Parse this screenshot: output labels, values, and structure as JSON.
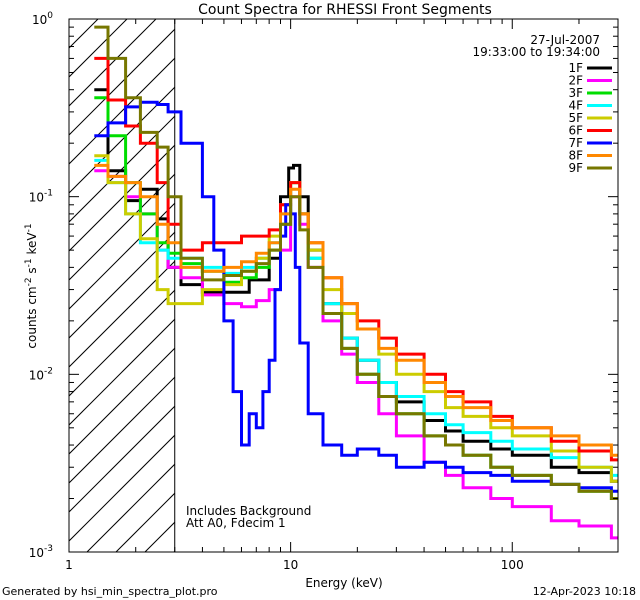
{
  "chart_data": {
    "type": "line",
    "title": "Count Spectra for RHESSI Front Segments",
    "xlabel": "Energy (keV)",
    "ylabel_parts": {
      "base": "counts cm",
      "exp1": "-2",
      "mid": " s",
      "exp2": "-1",
      "tail": " keV",
      "exp3": "-1"
    },
    "x_scale": "log",
    "y_scale": "log",
    "xlim": [
      1,
      300
    ],
    "ylim": [
      0.001,
      1
    ],
    "x_ticks": [
      {
        "value": 1,
        "label": "1"
      },
      {
        "value": 10,
        "label": "10"
      },
      {
        "value": 100,
        "label": "100"
      }
    ],
    "y_ticks": [
      {
        "value": 1,
        "base": "10",
        "exp": "0"
      },
      {
        "value": 0.1,
        "base": "10",
        "exp": "-1"
      },
      {
        "value": 0.01,
        "base": "10",
        "exp": "-2"
      },
      {
        "value": 0.001,
        "base": "10",
        "exp": "-3"
      }
    ],
    "date": "27-Jul-2007",
    "time_range": "19:33:00 to 19:34:00",
    "cutoff_energy": 3,
    "notes": [
      "Includes Background",
      "Att A0, Fdecim 1"
    ],
    "series": [
      {
        "name": "1F",
        "color": "#000000",
        "points": [
          [
            1.3,
            0.4
          ],
          [
            1.5,
            0.14
          ],
          [
            1.8,
            0.095
          ],
          [
            2.1,
            0.11
          ],
          [
            2.5,
            0.075
          ],
          [
            2.8,
            0.04
          ],
          [
            3.2,
            0.032
          ],
          [
            4,
            0.029
          ],
          [
            5,
            0.029
          ],
          [
            6.5,
            0.034
          ],
          [
            8,
            0.045
          ],
          [
            9,
            0.1
          ],
          [
            9.8,
            0.145
          ],
          [
            10.3,
            0.15
          ],
          [
            11,
            0.1
          ],
          [
            12,
            0.05
          ],
          [
            14,
            0.025
          ],
          [
            17,
            0.016
          ],
          [
            20,
            0.012
          ],
          [
            25,
            0.009
          ],
          [
            30,
            0.007
          ],
          [
            40,
            0.0055
          ],
          [
            50,
            0.0048
          ],
          [
            60,
            0.0042
          ],
          [
            80,
            0.0038
          ],
          [
            100,
            0.0035
          ],
          [
            150,
            0.003
          ],
          [
            200,
            0.0028
          ],
          [
            280,
            0.0025
          ]
        ]
      },
      {
        "name": "2F",
        "color": "#ff00ff",
        "points": [
          [
            1.3,
            0.14
          ],
          [
            1.5,
            0.13
          ],
          [
            1.8,
            0.1
          ],
          [
            2.1,
            0.08
          ],
          [
            2.5,
            0.05
          ],
          [
            2.8,
            0.04
          ],
          [
            3.2,
            0.035
          ],
          [
            4,
            0.028
          ],
          [
            5,
            0.025
          ],
          [
            6,
            0.024
          ],
          [
            7,
            0.026
          ],
          [
            8,
            0.03
          ],
          [
            9,
            0.05
          ],
          [
            10,
            0.1
          ],
          [
            11,
            0.07
          ],
          [
            12,
            0.04
          ],
          [
            14,
            0.02
          ],
          [
            17,
            0.013
          ],
          [
            20,
            0.009
          ],
          [
            25,
            0.006
          ],
          [
            30,
            0.0045
          ],
          [
            40,
            0.0032
          ],
          [
            50,
            0.0027
          ],
          [
            60,
            0.0023
          ],
          [
            80,
            0.002
          ],
          [
            100,
            0.0018
          ],
          [
            150,
            0.0015
          ],
          [
            200,
            0.0014
          ],
          [
            280,
            0.0012
          ]
        ]
      },
      {
        "name": "3F",
        "color": "#00dd00",
        "points": [
          [
            1.3,
            0.36
          ],
          [
            1.5,
            0.22
          ],
          [
            1.8,
            0.12
          ],
          [
            2.1,
            0.08
          ],
          [
            2.5,
            0.055
          ],
          [
            2.8,
            0.048
          ],
          [
            3.2,
            0.042
          ],
          [
            4,
            0.038
          ],
          [
            5,
            0.033
          ],
          [
            6,
            0.035
          ],
          [
            7,
            0.04
          ],
          [
            8,
            0.05
          ],
          [
            9,
            0.07
          ],
          [
            10,
            0.12
          ],
          [
            11,
            0.08
          ],
          [
            12,
            0.045
          ],
          [
            14,
            0.022
          ],
          [
            17,
            0.014
          ],
          [
            20,
            0.01
          ],
          [
            25,
            0.0075
          ],
          [
            30,
            0.006
          ],
          [
            40,
            0.0045
          ],
          [
            50,
            0.004
          ],
          [
            60,
            0.0035
          ],
          [
            80,
            0.003
          ],
          [
            100,
            0.0027
          ],
          [
            150,
            0.0024
          ],
          [
            200,
            0.0022
          ],
          [
            280,
            0.002
          ]
        ]
      },
      {
        "name": "4F",
        "color": "#00ffff",
        "points": [
          [
            1.3,
            0.16
          ],
          [
            1.5,
            0.12
          ],
          [
            1.8,
            0.08
          ],
          [
            2.1,
            0.055
          ],
          [
            2.5,
            0.05
          ],
          [
            2.8,
            0.045
          ],
          [
            3.2,
            0.045
          ],
          [
            4,
            0.04
          ],
          [
            5,
            0.037
          ],
          [
            6,
            0.04
          ],
          [
            7,
            0.045
          ],
          [
            8,
            0.055
          ],
          [
            9,
            0.08
          ],
          [
            10,
            0.12
          ],
          [
            11,
            0.08
          ],
          [
            12,
            0.045
          ],
          [
            14,
            0.025
          ],
          [
            17,
            0.016
          ],
          [
            20,
            0.012
          ],
          [
            25,
            0.009
          ],
          [
            30,
            0.0075
          ],
          [
            40,
            0.006
          ],
          [
            50,
            0.0052
          ],
          [
            60,
            0.0047
          ],
          [
            80,
            0.0042
          ],
          [
            100,
            0.0038
          ],
          [
            150,
            0.0034
          ],
          [
            200,
            0.003
          ],
          [
            280,
            0.0027
          ]
        ]
      },
      {
        "name": "5F",
        "color": "#cccc00",
        "points": [
          [
            1.3,
            0.17
          ],
          [
            1.5,
            0.12
          ],
          [
            1.8,
            0.08
          ],
          [
            2.1,
            0.058
          ],
          [
            2.5,
            0.03
          ],
          [
            2.8,
            0.025
          ],
          [
            3.2,
            0.025
          ],
          [
            4,
            0.03
          ],
          [
            5,
            0.032
          ],
          [
            6,
            0.038
          ],
          [
            7,
            0.045
          ],
          [
            8,
            0.06
          ],
          [
            9,
            0.09
          ],
          [
            10,
            0.12
          ],
          [
            11,
            0.08
          ],
          [
            12,
            0.05
          ],
          [
            14,
            0.03
          ],
          [
            17,
            0.022
          ],
          [
            20,
            0.018
          ],
          [
            25,
            0.013
          ],
          [
            30,
            0.01
          ],
          [
            40,
            0.008
          ],
          [
            50,
            0.0065
          ],
          [
            60,
            0.0058
          ],
          [
            80,
            0.005
          ],
          [
            100,
            0.0045
          ],
          [
            150,
            0.0037
          ],
          [
            200,
            0.003
          ],
          [
            280,
            0.0025
          ]
        ]
      },
      {
        "name": "6F",
        "color": "#ff0000",
        "points": [
          [
            1.3,
            0.6
          ],
          [
            1.5,
            0.35
          ],
          [
            1.8,
            0.25
          ],
          [
            2.1,
            0.2
          ],
          [
            2.5,
            0.12
          ],
          [
            2.8,
            0.07
          ],
          [
            3.2,
            0.05
          ],
          [
            4,
            0.055
          ],
          [
            5,
            0.055
          ],
          [
            6,
            0.06
          ],
          [
            7,
            0.06
          ],
          [
            8,
            0.065
          ],
          [
            9,
            0.09
          ],
          [
            10,
            0.12
          ],
          [
            11,
            0.08
          ],
          [
            12,
            0.055
          ],
          [
            14,
            0.035
          ],
          [
            17,
            0.025
          ],
          [
            20,
            0.02
          ],
          [
            25,
            0.016
          ],
          [
            30,
            0.013
          ],
          [
            40,
            0.01
          ],
          [
            50,
            0.008
          ],
          [
            60,
            0.007
          ],
          [
            80,
            0.0058
          ],
          [
            100,
            0.005
          ],
          [
            150,
            0.0042
          ],
          [
            200,
            0.0037
          ],
          [
            280,
            0.0033
          ]
        ]
      },
      {
        "name": "7F",
        "color": "#0000ff",
        "points": [
          [
            1.3,
            0.22
          ],
          [
            1.5,
            0.26
          ],
          [
            1.8,
            0.32
          ],
          [
            2.1,
            0.34
          ],
          [
            2.5,
            0.33
          ],
          [
            2.8,
            0.3
          ],
          [
            3.2,
            0.2
          ],
          [
            4,
            0.1
          ],
          [
            4.5,
            0.05
          ],
          [
            5,
            0.02
          ],
          [
            5.5,
            0.008
          ],
          [
            6,
            0.004
          ],
          [
            6.5,
            0.006
          ],
          [
            7,
            0.005
          ],
          [
            7.5,
            0.008
          ],
          [
            8,
            0.012
          ],
          [
            8.5,
            0.03
          ],
          [
            9,
            0.06
          ],
          [
            9.5,
            0.09
          ],
          [
            10,
            0.08
          ],
          [
            10.5,
            0.04
          ],
          [
            11,
            0.015
          ],
          [
            12,
            0.006
          ],
          [
            14,
            0.004
          ],
          [
            17,
            0.0035
          ],
          [
            20,
            0.0038
          ],
          [
            25,
            0.0035
          ],
          [
            30,
            0.003
          ],
          [
            40,
            0.0032
          ],
          [
            50,
            0.003
          ],
          [
            60,
            0.0028
          ],
          [
            80,
            0.0027
          ],
          [
            100,
            0.0025
          ],
          [
            150,
            0.0024
          ],
          [
            200,
            0.0023
          ],
          [
            280,
            0.0022
          ]
        ]
      },
      {
        "name": "8F",
        "color": "#ff8800",
        "points": [
          [
            1.3,
            0.15
          ],
          [
            1.5,
            0.13
          ],
          [
            1.8,
            0.12
          ],
          [
            2.1,
            0.1
          ],
          [
            2.5,
            0.07
          ],
          [
            2.8,
            0.055
          ],
          [
            3.2,
            0.04
          ],
          [
            4,
            0.038
          ],
          [
            5,
            0.04
          ],
          [
            6,
            0.043
          ],
          [
            7,
            0.048
          ],
          [
            8,
            0.055
          ],
          [
            9,
            0.08
          ],
          [
            10,
            0.11
          ],
          [
            11,
            0.08
          ],
          [
            12,
            0.055
          ],
          [
            14,
            0.035
          ],
          [
            17,
            0.025
          ],
          [
            20,
            0.018
          ],
          [
            25,
            0.014
          ],
          [
            30,
            0.012
          ],
          [
            40,
            0.009
          ],
          [
            50,
            0.0075
          ],
          [
            60,
            0.0065
          ],
          [
            80,
            0.0055
          ],
          [
            100,
            0.005
          ],
          [
            150,
            0.0045
          ],
          [
            200,
            0.004
          ],
          [
            280,
            0.0035
          ]
        ]
      },
      {
        "name": "9F",
        "color": "#777700",
        "points": [
          [
            1.3,
            0.9
          ],
          [
            1.5,
            0.6
          ],
          [
            1.8,
            0.36
          ],
          [
            2.1,
            0.23
          ],
          [
            2.5,
            0.19
          ],
          [
            2.8,
            0.1
          ],
          [
            3.2,
            0.045
          ],
          [
            4,
            0.034
          ],
          [
            5,
            0.036
          ],
          [
            6,
            0.038
          ],
          [
            7,
            0.042
          ],
          [
            8,
            0.05
          ],
          [
            9,
            0.07
          ],
          [
            10,
            0.1
          ],
          [
            11,
            0.065
          ],
          [
            12,
            0.04
          ],
          [
            14,
            0.022
          ],
          [
            17,
            0.014
          ],
          [
            20,
            0.01
          ],
          [
            25,
            0.0075
          ],
          [
            30,
            0.006
          ],
          [
            40,
            0.0045
          ],
          [
            50,
            0.004
          ],
          [
            60,
            0.0035
          ],
          [
            80,
            0.003
          ],
          [
            100,
            0.0027
          ],
          [
            150,
            0.0024
          ],
          [
            200,
            0.0022
          ],
          [
            280,
            0.002
          ]
        ]
      }
    ]
  },
  "footer": {
    "generated_by": "Generated by hsi_min_spectra_plot.pro",
    "timestamp": "12-Apr-2023 10:18"
  }
}
